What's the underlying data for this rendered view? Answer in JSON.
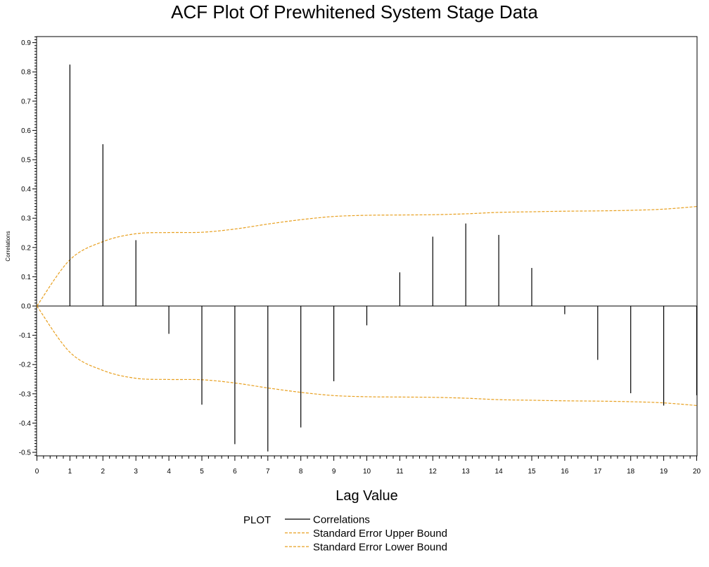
{
  "chart_data": {
    "type": "bar",
    "title": "ACF Plot Of Prewhitened System Stage Data",
    "xlabel": "Lag Value",
    "ylabel": "Correlations",
    "xlim": [
      0,
      20
    ],
    "ylim": [
      -0.52,
      0.92
    ],
    "x_ticks": [
      0,
      1,
      2,
      3,
      4,
      5,
      6,
      7,
      8,
      9,
      10,
      11,
      12,
      13,
      14,
      15,
      16,
      17,
      18,
      19,
      20
    ],
    "y_ticks": [
      -0.5,
      -0.4,
      -0.3,
      -0.2,
      -0.1,
      0.0,
      0.1,
      0.2,
      0.3,
      0.4,
      0.5,
      0.6,
      0.7,
      0.8,
      0.9
    ],
    "y_tick_labels": [
      "-0.5",
      "-0.4",
      "-0.3",
      "-0.2",
      "-0.1",
      "0.0",
      "0.1",
      "0.2",
      "0.3",
      "0.4",
      "0.5",
      "0.6",
      "0.7",
      "0.8",
      "0.9"
    ],
    "grid": false,
    "legend": {
      "title": "PLOT",
      "placement": "bottom-center"
    },
    "series": [
      {
        "name": "Correlations",
        "style": "needle",
        "color": "#000000",
        "x": [
          1,
          2,
          3,
          4,
          5,
          6,
          7,
          8,
          9,
          10,
          11,
          12,
          13,
          14,
          15,
          16,
          17,
          18,
          19,
          20
        ],
        "values": [
          0.825,
          0.553,
          0.225,
          -0.095,
          -0.337,
          -0.472,
          -0.497,
          -0.415,
          -0.257,
          -0.066,
          0.115,
          0.237,
          0.282,
          0.243,
          0.13,
          -0.028,
          -0.184,
          -0.298,
          -0.34,
          -0.305
        ]
      },
      {
        "name": "Standard Error Upper Bound",
        "style": "dashed-line",
        "color": "#E8A020",
        "x": [
          0,
          1,
          2,
          3,
          4,
          5,
          6,
          7,
          8,
          9,
          10,
          11,
          12,
          13,
          14,
          15,
          16,
          17,
          18,
          19,
          20
        ],
        "values": [
          0.0,
          0.158,
          0.22,
          0.247,
          0.251,
          0.252,
          0.263,
          0.28,
          0.295,
          0.306,
          0.31,
          0.311,
          0.312,
          0.315,
          0.32,
          0.322,
          0.324,
          0.325,
          0.327,
          0.331,
          0.34
        ]
      },
      {
        "name": "Standard Error Lower Bound",
        "style": "dashed-line",
        "color": "#E8A020",
        "x": [
          0,
          1,
          2,
          3,
          4,
          5,
          6,
          7,
          8,
          9,
          10,
          11,
          12,
          13,
          14,
          15,
          16,
          17,
          18,
          19,
          20
        ],
        "values": [
          0.0,
          -0.158,
          -0.22,
          -0.247,
          -0.251,
          -0.252,
          -0.263,
          -0.28,
          -0.295,
          -0.306,
          -0.31,
          -0.311,
          -0.312,
          -0.315,
          -0.32,
          -0.322,
          -0.324,
          -0.325,
          -0.327,
          -0.331,
          -0.34
        ]
      }
    ]
  }
}
